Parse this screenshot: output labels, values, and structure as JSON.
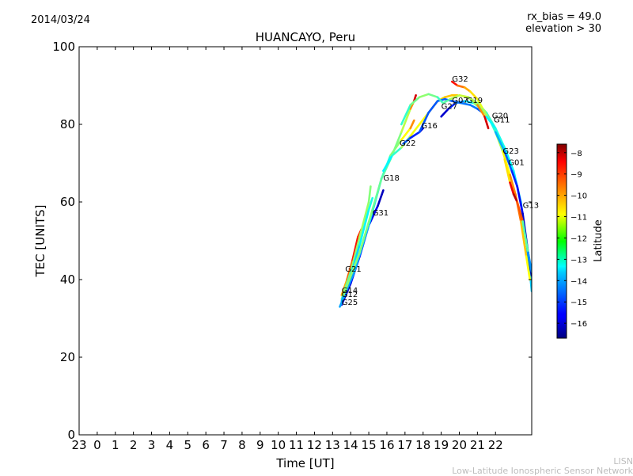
{
  "header": {
    "date": "2014/03/24",
    "rx_bias": "rx_bias = 49.0",
    "elevation": "elevation > 30"
  },
  "watermark": {
    "line1": "LISN",
    "line2": "Low-Latitude Ionospheric Sensor Network"
  },
  "chart_data": {
    "type": "line",
    "title": "HUANCAYO, Peru",
    "xlabel": "Time [UT]",
    "ylabel": "TEC [UNITS]",
    "xlim": [
      -1,
      24
    ],
    "ylim": [
      0,
      100
    ],
    "xticks": [
      -1,
      0,
      1,
      2,
      3,
      4,
      5,
      6,
      7,
      8,
      9,
      10,
      11,
      12,
      13,
      14,
      15,
      16,
      17,
      18,
      19,
      20,
      21,
      22
    ],
    "xtick_labels": [
      "23",
      "0",
      "1",
      "2",
      "3",
      "4",
      "5",
      "6",
      "7",
      "8",
      "9",
      "10",
      "11",
      "12",
      "13",
      "14",
      "15",
      "16",
      "17",
      "18",
      "19",
      "20",
      "21",
      "22"
    ],
    "yticks": [
      0,
      20,
      40,
      60,
      80,
      100
    ],
    "ytick_labels": [
      "0",
      "20",
      "40",
      "60",
      "80",
      "100"
    ],
    "colorbar": {
      "label": "Latitude",
      "min": -16.7,
      "max": -7.6,
      "ticks": [
        -8,
        -9,
        -10,
        -11,
        -12,
        -13,
        -14,
        -15,
        -16
      ],
      "tick_labels": [
        "−8",
        "−9",
        "−10",
        "−11",
        "−12",
        "−13",
        "−14",
        "−15",
        "−16"
      ]
    },
    "series": [
      {
        "name": "G21",
        "label_at": [
          13.7,
          42
        ],
        "points": [
          [
            13.5,
            36,
            -10.5
          ],
          [
            13.8,
            40,
            -10
          ],
          [
            14.1,
            45,
            -9.2
          ],
          [
            14.4,
            51,
            -8.6
          ],
          [
            14.6,
            53,
            -9.8
          ]
        ]
      },
      {
        "name": "G14",
        "label_at": [
          13.5,
          36.5
        ],
        "points": [
          [
            13.5,
            35,
            -12.5
          ],
          [
            14.0,
            42,
            -12.2
          ],
          [
            14.5,
            51,
            -11.8
          ],
          [
            15.0,
            60,
            -12
          ],
          [
            15.1,
            64,
            -12.2
          ]
        ]
      },
      {
        "name": "G12",
        "label_at": [
          13.5,
          35.5
        ],
        "points": [
          [
            13.5,
            34.5,
            -14
          ],
          [
            14.0,
            41,
            -13.8
          ],
          [
            14.5,
            49,
            -13.5
          ],
          [
            15.0,
            58,
            -13.2
          ],
          [
            15.2,
            61,
            -13
          ]
        ]
      },
      {
        "name": "G31",
        "label_at": [
          15.2,
          56.5
        ],
        "points": [
          [
            13.5,
            33.5,
            -16.2
          ],
          [
            14.0,
            39,
            -15.8
          ],
          [
            14.5,
            46,
            -15.5
          ],
          [
            15.0,
            54,
            -15.5
          ],
          [
            15.5,
            59,
            -16
          ],
          [
            15.8,
            63,
            -16.3
          ]
        ]
      },
      {
        "name": "G25",
        "label_at": [
          13.5,
          33.5
        ],
        "points": [
          [
            13.4,
            33,
            -14.2
          ],
          [
            14.2,
            42,
            -14
          ],
          [
            15.0,
            54,
            -13.8
          ],
          [
            15.7,
            66,
            -13.5
          ],
          [
            16.2,
            72,
            -12.5
          ],
          [
            16.8,
            76,
            -11.5
          ],
          [
            17.3,
            79,
            -10.5
          ],
          [
            17.5,
            81,
            -9.5
          ]
        ]
      },
      {
        "name": "G18",
        "label_at": [
          15.8,
          65.5
        ],
        "points": [
          [
            13.6,
            36,
            -12
          ],
          [
            14.5,
            47,
            -12
          ],
          [
            15.2,
            58,
            -12.2
          ],
          [
            15.7,
            66,
            -12.5
          ],
          [
            16.2,
            71,
            -12.5
          ],
          [
            16.8,
            78,
            -11.8
          ],
          [
            17.3,
            84,
            -11.5
          ],
          [
            17.5,
            86,
            -8.5
          ],
          [
            17.6,
            87.5,
            -8.2
          ]
        ]
      },
      {
        "name": "G22",
        "label_at": [
          16.7,
          74.5
        ],
        "points": [
          [
            15.8,
            68,
            -13.5
          ],
          [
            16.3,
            72,
            -13.2
          ],
          [
            16.8,
            74,
            -12.5
          ],
          [
            17.3,
            77,
            -11.2
          ],
          [
            17.8,
            80,
            -11
          ],
          [
            18.3,
            83,
            -11
          ],
          [
            18.8,
            86,
            -10.8
          ],
          [
            19.2,
            87,
            -10.5
          ],
          [
            19.6,
            87.5,
            -10.5
          ],
          [
            19.9,
            87.5,
            -10.5
          ]
        ]
      },
      {
        "name": "G16",
        "label_at": [
          17.9,
          79
        ],
        "points": [
          [
            16.9,
            75,
            -14.5
          ],
          [
            17.3,
            76.5,
            -15
          ],
          [
            17.8,
            78,
            -15.5
          ],
          [
            18.0,
            79,
            -16.5
          ]
        ]
      },
      {
        "name": "G27",
        "label_at": [
          19.0,
          84
        ],
        "points": [
          [
            17.8,
            78,
            -14.8
          ],
          [
            18.3,
            83,
            -14.8
          ],
          [
            18.8,
            86,
            -14.8
          ],
          [
            19.2,
            86.5,
            -14.5
          ],
          [
            19.6,
            86,
            -15
          ],
          [
            20.1,
            85.5,
            -14.5
          ],
          [
            20.6,
            85,
            -14.5
          ],
          [
            21.0,
            84,
            -14.5
          ],
          [
            21.3,
            83,
            -15
          ]
        ]
      },
      {
        "name": "G07",
        "label_at": [
          19.6,
          85.5
        ],
        "points": [
          [
            19.0,
            82,
            -16.5
          ],
          [
            19.4,
            84,
            -15.5
          ],
          [
            19.8,
            85.5,
            -15
          ],
          [
            20.3,
            86,
            -14
          ],
          [
            20.8,
            85.5,
            -13
          ],
          [
            21.2,
            84,
            -12
          ],
          [
            21.6,
            82,
            -12.5
          ],
          [
            22.0,
            78,
            -13.2
          ]
        ]
      },
      {
        "name": "G19",
        "label_at": [
          20.4,
          85.5
        ],
        "points": [
          [
            16.8,
            80,
            -13.2
          ],
          [
            17.3,
            85,
            -12.5
          ],
          [
            17.8,
            87,
            -12
          ],
          [
            18.3,
            87.8,
            -12
          ],
          [
            18.8,
            87,
            -12.5
          ],
          [
            19.1,
            85.5,
            -13
          ],
          [
            19.5,
            86.5,
            -12
          ],
          [
            20.0,
            87.5,
            -11.5
          ],
          [
            20.5,
            87,
            -11.5
          ],
          [
            21.0,
            85.5,
            -12
          ],
          [
            21.5,
            83,
            -12.5
          ],
          [
            22.0,
            79,
            -13
          ]
        ]
      },
      {
        "name": "G32",
        "label_at": [
          19.6,
          91
        ],
        "points": [
          [
            19.6,
            91,
            -8.2
          ],
          [
            19.9,
            90,
            -9.5
          ],
          [
            20.3,
            89.5,
            -10
          ],
          [
            20.6,
            88.5,
            -10.5
          ],
          [
            21.0,
            86.5,
            -11
          ],
          [
            21.3,
            84,
            -11.5
          ],
          [
            21.6,
            81.5,
            -12
          ]
        ]
      },
      {
        "name": "G20",
        "label_at": [
          21.8,
          81.5
        ],
        "points": [
          [
            20.5,
            87,
            -12
          ],
          [
            21.0,
            85,
            -11.5
          ],
          [
            21.4,
            82,
            -8.5
          ],
          [
            21.6,
            79,
            -8.2
          ]
        ]
      },
      {
        "name": "G11",
        "label_at": [
          21.9,
          80.5
        ],
        "points": [
          [
            21.5,
            82,
            -13.5
          ],
          [
            22.0,
            79,
            -13.2
          ],
          [
            22.5,
            74,
            -13
          ],
          [
            23.0,
            68,
            -13.5
          ],
          [
            23.4,
            60,
            -13.5
          ],
          [
            23.7,
            50,
            -13.8
          ],
          [
            23.9,
            42,
            -14
          ],
          [
            24.0,
            37,
            -13.5
          ]
        ]
      },
      {
        "name": "G23",
        "label_at": [
          22.4,
          72.5
        ],
        "points": [
          [
            22.0,
            78,
            -12
          ],
          [
            22.4,
            73,
            -11.5
          ],
          [
            22.8,
            67,
            -10.5
          ],
          [
            23.1,
            62,
            -9.5
          ],
          [
            23.4,
            55,
            -10
          ],
          [
            23.7,
            46,
            -11
          ],
          [
            23.9,
            40,
            -11
          ]
        ]
      },
      {
        "name": "G01",
        "label_at": [
          22.7,
          69.5
        ],
        "points": [
          [
            22.0,
            78,
            -13.5
          ],
          [
            22.5,
            73,
            -14.5
          ],
          [
            22.9,
            68,
            -15
          ],
          [
            23.2,
            64,
            -15.5
          ],
          [
            23.5,
            57,
            -15.8
          ],
          [
            23.8,
            47,
            -16.2
          ],
          [
            24.0,
            41,
            -16.5
          ]
        ]
      },
      {
        "name": "G13",
        "label_at": [
          23.5,
          58.5
        ],
        "points": [
          [
            22.5,
            71,
            -12.5
          ],
          [
            22.8,
            65,
            -9
          ],
          [
            23.0,
            62,
            -8.2
          ],
          [
            23.2,
            60,
            -8
          ],
          [
            23.5,
            55,
            -11
          ],
          [
            23.8,
            47,
            -14
          ],
          [
            24.0,
            42,
            -14.5
          ]
        ]
      }
    ]
  }
}
